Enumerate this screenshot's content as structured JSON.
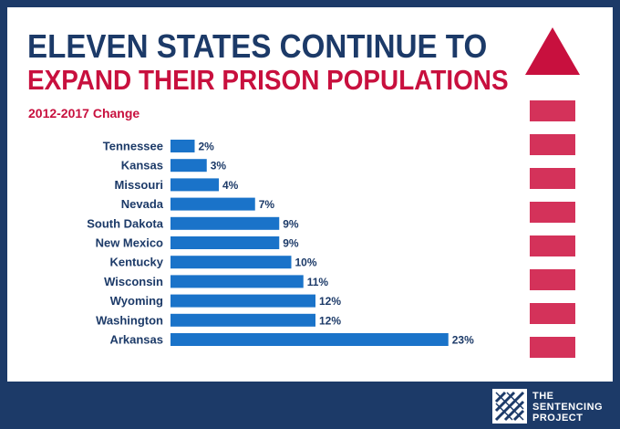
{
  "header": {
    "title_line1": "ELEVEN STATES CONTINUE TO",
    "title_line2": "EXPAND THEIR PRISON POPULATIONS",
    "subtitle": "2012-2017 Change"
  },
  "footer": {
    "logo_line1": "THE",
    "logo_line2": "SENTENCING",
    "logo_line3": "PROJECT"
  },
  "colors": {
    "navy": "#1c3a68",
    "red": "#c8103e",
    "bar": "#1a73c9"
  },
  "icons": {
    "arrow": "up-arrow-icon",
    "logo": "sentencing-project-logo"
  },
  "chart_data": {
    "type": "bar",
    "orientation": "horizontal",
    "title": "",
    "xlabel": "",
    "ylabel": "",
    "categories": [
      "Tennessee",
      "Kansas",
      "Missouri",
      "Nevada",
      "South Dakota",
      "New Mexico",
      "Kentucky",
      "Wisconsin",
      "Wyoming",
      "Washington",
      "Arkansas"
    ],
    "values": [
      2,
      3,
      4,
      7,
      9,
      9,
      10,
      11,
      12,
      12,
      23
    ],
    "value_labels": [
      "2%",
      "3%",
      "4%",
      "7%",
      "9%",
      "9%",
      "10%",
      "11%",
      "12%",
      "12%",
      "23%"
    ],
    "unit": "%",
    "xlim": [
      0,
      23
    ],
    "grid": false,
    "legend": "none"
  }
}
